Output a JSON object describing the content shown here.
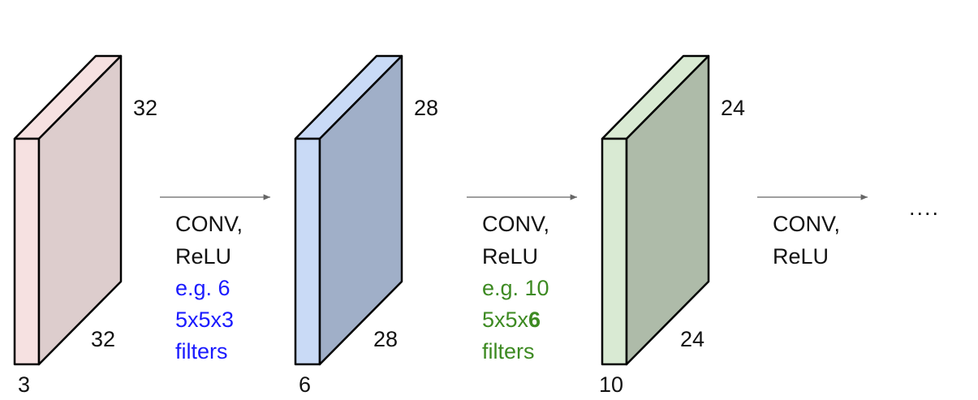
{
  "colors": {
    "block1_front": "#f6e1e1",
    "block1_side": "#ddcdcd",
    "block1_top": "#f6e1e1",
    "block2_front": "#c9daf6",
    "block2_side": "#a0afc8",
    "block2_top": "#c9daf6",
    "block3_front": "#d9ead3",
    "block3_side": "#aebba9",
    "block3_top": "#d9ead3",
    "blue_text": "#1a1aff",
    "green_text": "#3d8a22",
    "arrow": "#666666"
  },
  "volumes": [
    {
      "height": "32",
      "width": "32",
      "depth": "3"
    },
    {
      "height": "28",
      "width": "28",
      "depth": "6"
    },
    {
      "height": "24",
      "width": "24",
      "depth": "10"
    }
  ],
  "stages": [
    {
      "op_line1": "CONV,",
      "op_line2": "ReLU",
      "example": "e.g. 6",
      "filter_size": "5x5x3",
      "filter_bold": "",
      "filters_word": "filters"
    },
    {
      "op_line1": "CONV,",
      "op_line2": "ReLU",
      "example": "e.g. 10",
      "filter_size": "5x5x",
      "filter_bold": "6",
      "filters_word": "filters"
    },
    {
      "op_line1": "CONV,",
      "op_line2": "ReLU"
    }
  ],
  "ellipsis": "...."
}
